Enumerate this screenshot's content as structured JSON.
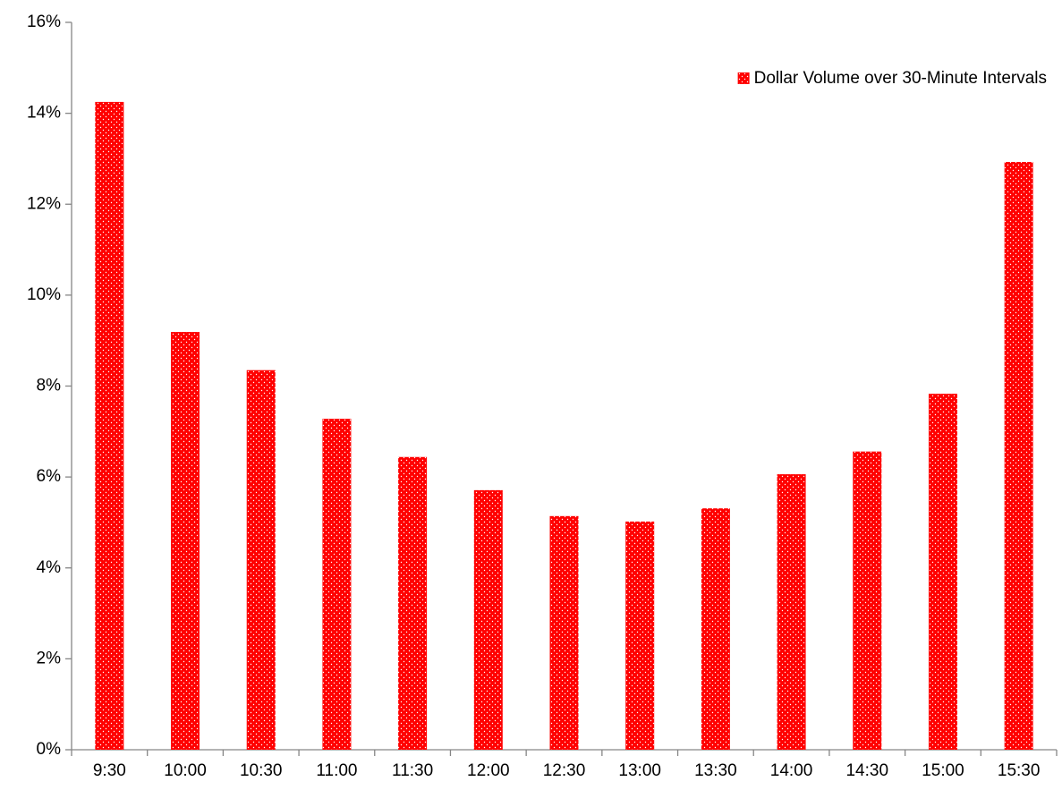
{
  "chart_data": {
    "type": "bar",
    "categories": [
      "9:30",
      "10:00",
      "10:30",
      "11:00",
      "11:30",
      "12:00",
      "12:30",
      "13:00",
      "13:30",
      "14:00",
      "14:30",
      "15:00",
      "15:30"
    ],
    "series": [
      {
        "name": "Dollar Volume over 30-Minute Intervals",
        "color": "#ff0000",
        "values": [
          14.25,
          9.19,
          8.35,
          7.28,
          6.44,
          5.71,
          5.14,
          5.02,
          5.31,
          6.06,
          6.56,
          7.83,
          12.93
        ]
      }
    ],
    "ylim": [
      0,
      16
    ],
    "yticks": [
      {
        "value": 0,
        "label": "0%"
      },
      {
        "value": 2,
        "label": "2%"
      },
      {
        "value": 4,
        "label": "4%"
      },
      {
        "value": 6,
        "label": "6%"
      },
      {
        "value": 8,
        "label": "8%"
      },
      {
        "value": 10,
        "label": "10%"
      },
      {
        "value": 12,
        "label": "12%"
      },
      {
        "value": 14,
        "label": "14%"
      },
      {
        "value": 16,
        "label": "16%"
      }
    ],
    "legend": "top-right",
    "grid": false
  }
}
